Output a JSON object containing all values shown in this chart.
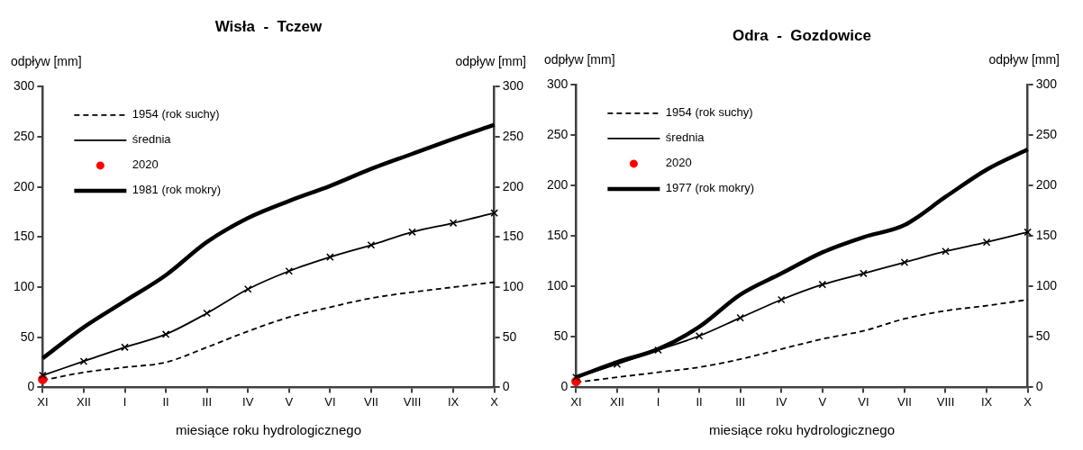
{
  "chart_data": [
    {
      "type": "line",
      "title": "Wisła  -  Tczew",
      "xlabel": "miesiące roku hydrologicznego",
      "ylabel": "odpływ [mm]",
      "y2label": "odpływ [mm]",
      "categories": [
        "XI",
        "XII",
        "I",
        "II",
        "III",
        "IV",
        "V",
        "VI",
        "VII",
        "VIII",
        "IX",
        "X"
      ],
      "series": [
        {
          "name": "1954 (rok suchy)",
          "color": "#000000",
          "line_style": "dashed",
          "marker": "none",
          "values": [
            7,
            15,
            20,
            25,
            40,
            56,
            70,
            80,
            89,
            95,
            100,
            105
          ]
        },
        {
          "name": "średnia",
          "color": "#000000",
          "line_style": "solid",
          "marker": "cross",
          "values": [
            12,
            26,
            40,
            53,
            74,
            98,
            116,
            130,
            142,
            155,
            164,
            174
          ]
        },
        {
          "name": "2020",
          "type": "scatter",
          "color": "#ff0000",
          "marker": "circle",
          "values": [
            8,
            null,
            null,
            null,
            null,
            null,
            null,
            null,
            null,
            null,
            null,
            null
          ]
        },
        {
          "name": "1981 (rok mokry)",
          "color": "#000000",
          "line_style": "solid",
          "marker": "none",
          "values": [
            29,
            60,
            86,
            112,
            145,
            169,
            186,
            201,
            218,
            233,
            248,
            262
          ]
        }
      ],
      "ylim": [
        0,
        300
      ],
      "yticks": [
        0,
        50,
        100,
        150,
        200,
        250,
        300
      ],
      "y2lim": [
        0,
        300
      ],
      "y2ticks": [
        0,
        50,
        100,
        150,
        200,
        250,
        300
      ],
      "grid": false,
      "legend": "top left"
    },
    {
      "type": "line",
      "title": "Odra  -  Gozdowice",
      "xlabel": "miesiące roku hydrologicznego",
      "ylabel": "odpływ [mm]",
      "y2label": "odpływ [mm]",
      "categories": [
        "XI",
        "XII",
        "I",
        "II",
        "III",
        "IV",
        "V",
        "VI",
        "VII",
        "VIII",
        "IX",
        "X"
      ],
      "series": [
        {
          "name": "1954 (rok suchy)",
          "color": "#000000",
          "line_style": "dashed",
          "marker": "none",
          "values": [
            5,
            10,
            15,
            20,
            28,
            38,
            48,
            56,
            68,
            76,
            81,
            87
          ]
        },
        {
          "name": "średnia",
          "color": "#000000",
          "line_style": "solid",
          "marker": "cross",
          "values": [
            10,
            23,
            37,
            51,
            69,
            87,
            102,
            113,
            124,
            135,
            144,
            154
          ]
        },
        {
          "name": "2020",
          "type": "scatter",
          "color": "#ff0000",
          "marker": "circle",
          "values": [
            6,
            null,
            null,
            null,
            null,
            null,
            null,
            null,
            null,
            null,
            null,
            null
          ]
        },
        {
          "name": "1977 (rok mokry)",
          "color": "#000000",
          "line_style": "solid",
          "marker": "none",
          "values": [
            10,
            25,
            38,
            60,
            92,
            113,
            134,
            149,
            161,
            189,
            216,
            236
          ]
        }
      ],
      "ylim": [
        0,
        300
      ],
      "yticks": [
        0,
        50,
        100,
        150,
        200,
        250,
        300
      ],
      "y2lim": [
        0,
        300
      ],
      "y2ticks": [
        0,
        50,
        100,
        150,
        200,
        250,
        300
      ],
      "grid": false,
      "legend": "top left"
    }
  ]
}
